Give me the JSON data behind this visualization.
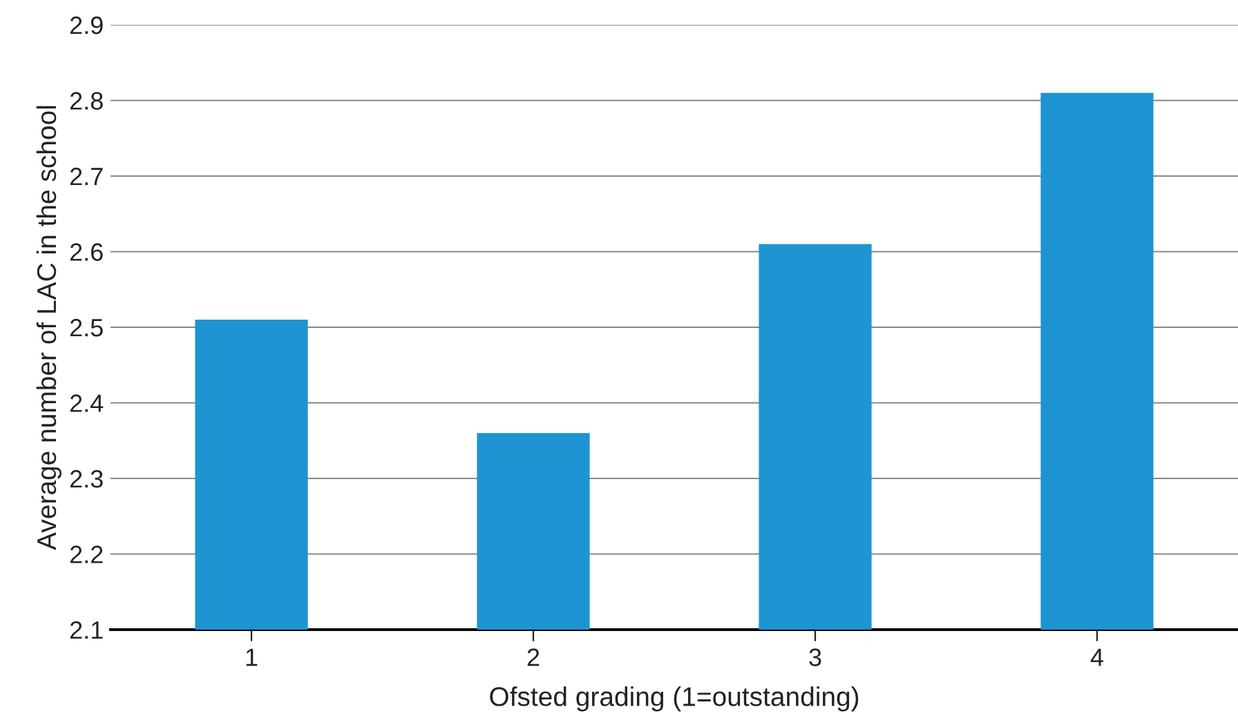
{
  "chart_data": {
    "type": "bar",
    "xlabel": "Ofsted grading (1=outstanding)",
    "ylabel": "Average number of LAC in the school",
    "categories": [
      "1",
      "2",
      "3",
      "4"
    ],
    "values": [
      2.51,
      2.36,
      2.61,
      2.81
    ],
    "color": "#1e94d3",
    "ylim": [
      2.1,
      2.9
    ],
    "yticks": [
      2.1,
      2.2,
      2.3,
      2.4,
      2.5,
      2.6,
      2.7,
      2.8,
      2.9
    ],
    "grid": "y",
    "legend": false
  }
}
